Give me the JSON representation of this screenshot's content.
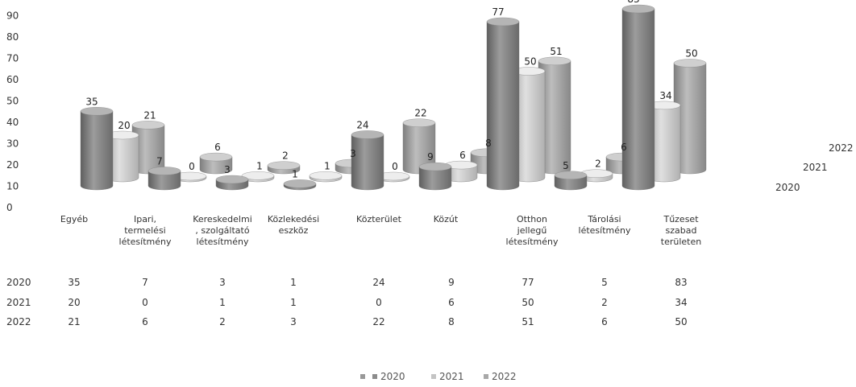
{
  "chart_data": {
    "type": "bar",
    "style": "3d-cylinder",
    "categories": [
      [
        "Egyéb"
      ],
      [
        "Ipari,",
        "termelési",
        "létesítmény"
      ],
      [
        "Kereskedelmi",
        ", szolgáltató",
        "létesítmény"
      ],
      [
        "Közlekedési",
        "eszköz"
      ],
      [
        "Közterület"
      ],
      [
        "Közút"
      ],
      [
        "Otthon",
        "jellegű",
        "létesítmény"
      ],
      [
        "Tárolási",
        "létesítmény"
      ],
      [
        "Tűzeset",
        "szabad",
        "területen"
      ]
    ],
    "series": [
      {
        "name": "2020",
        "color": "#8c8c8c",
        "values": [
          35,
          7,
          3,
          1,
          24,
          9,
          77,
          5,
          83
        ]
      },
      {
        "name": "2021",
        "color": "#c4c4c4",
        "values": [
          20,
          0,
          1,
          1,
          0,
          6,
          50,
          2,
          34
        ]
      },
      {
        "name": "2022",
        "color": "#a8a8a8",
        "values": [
          21,
          6,
          2,
          3,
          22,
          8,
          51,
          6,
          50
        ]
      }
    ],
    "y_ticks": [
      "0",
      "10",
      "20",
      "30",
      "40",
      "50",
      "60",
      "70",
      "80",
      "90"
    ],
    "ylim": [
      0,
      90
    ],
    "legend": {
      "position": "bottom",
      "entries": [
        "2020",
        "2021",
        "2022"
      ]
    },
    "data_table": true,
    "grid": false
  }
}
